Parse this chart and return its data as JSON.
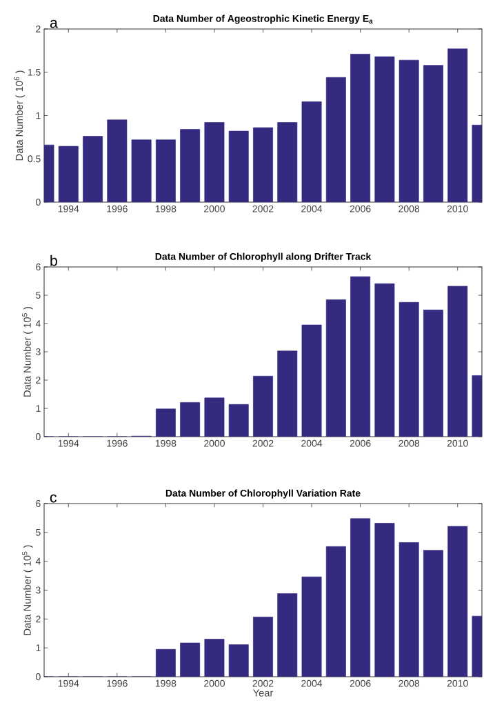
{
  "chart_data": [
    {
      "type": "bar",
      "title": "Data Number of Ageostrophic Kinetic Energy E$_{a}$",
      "ylabel": "Data Number ( 10$^{6}$ )",
      "annotations": [
        "a"
      ],
      "color": "#342a80",
      "x": [
        1993,
        1994,
        1995,
        1996,
        1997,
        1998,
        1999,
        2000,
        2001,
        2002,
        2003,
        2004,
        2005,
        2006,
        2007,
        2008,
        2009,
        2010,
        2011
      ],
      "values": [
        0.66,
        0.645,
        0.76,
        0.95,
        0.72,
        0.72,
        0.84,
        0.92,
        0.82,
        0.86,
        0.92,
        1.16,
        1.44,
        1.71,
        1.68,
        1.64,
        1.58,
        1.77,
        0.89
      ],
      "xlim": [
        1993,
        2011
      ],
      "ylim": [
        0,
        2
      ],
      "xticks": [
        1994,
        1996,
        1998,
        2000,
        2002,
        2004,
        2006,
        2008,
        2010
      ],
      "yticks": [
        0,
        0.5,
        1,
        1.5,
        2
      ]
    },
    {
      "type": "bar",
      "title": "Data Number of Chlorophyll along Drifter Track",
      "ylabel": "Data Number ( 10$^{5}$ )",
      "annotations": [
        "b"
      ],
      "color": "#342a80",
      "x": [
        1993,
        1994,
        1995,
        1996,
        1997,
        1998,
        1999,
        2000,
        2001,
        2002,
        2003,
        2004,
        2005,
        2006,
        2007,
        2008,
        2009,
        2010,
        2011
      ],
      "values": [
        0,
        0,
        0,
        0,
        0.02,
        0.98,
        1.21,
        1.37,
        1.14,
        2.14,
        3.03,
        3.95,
        4.84,
        5.66,
        5.41,
        4.75,
        4.48,
        5.32,
        2.16
      ],
      "xlim": [
        1993,
        2011
      ],
      "ylim": [
        0,
        6
      ],
      "xticks": [
        1994,
        1996,
        1998,
        2000,
        2002,
        2004,
        2006,
        2008,
        2010
      ],
      "yticks": [
        0,
        1,
        2,
        3,
        4,
        5,
        6
      ]
    },
    {
      "type": "bar",
      "title": "Data Number of Chlorophyll Variation Rate",
      "xlabel": "Year",
      "ylabel": "Data Number ( 10$^{5}$ )",
      "annotations": [
        "c"
      ],
      "color": "#342a80",
      "x": [
        1993,
        1994,
        1995,
        1996,
        1997,
        1998,
        1999,
        2000,
        2001,
        2002,
        2003,
        2004,
        2005,
        2006,
        2007,
        2008,
        2009,
        2010,
        2011
      ],
      "values": [
        0,
        0,
        0,
        0,
        0,
        0.95,
        1.17,
        1.3,
        1.11,
        2.07,
        2.88,
        3.46,
        4.51,
        5.48,
        5.32,
        4.65,
        4.38,
        5.21,
        2.1
      ],
      "xlim": [
        1993,
        2011
      ],
      "ylim": [
        0,
        6
      ],
      "xticks": [
        1994,
        1996,
        1998,
        2000,
        2002,
        2004,
        2006,
        2008,
        2010
      ],
      "yticks": [
        0,
        1,
        2,
        3,
        4,
        5,
        6
      ]
    }
  ]
}
